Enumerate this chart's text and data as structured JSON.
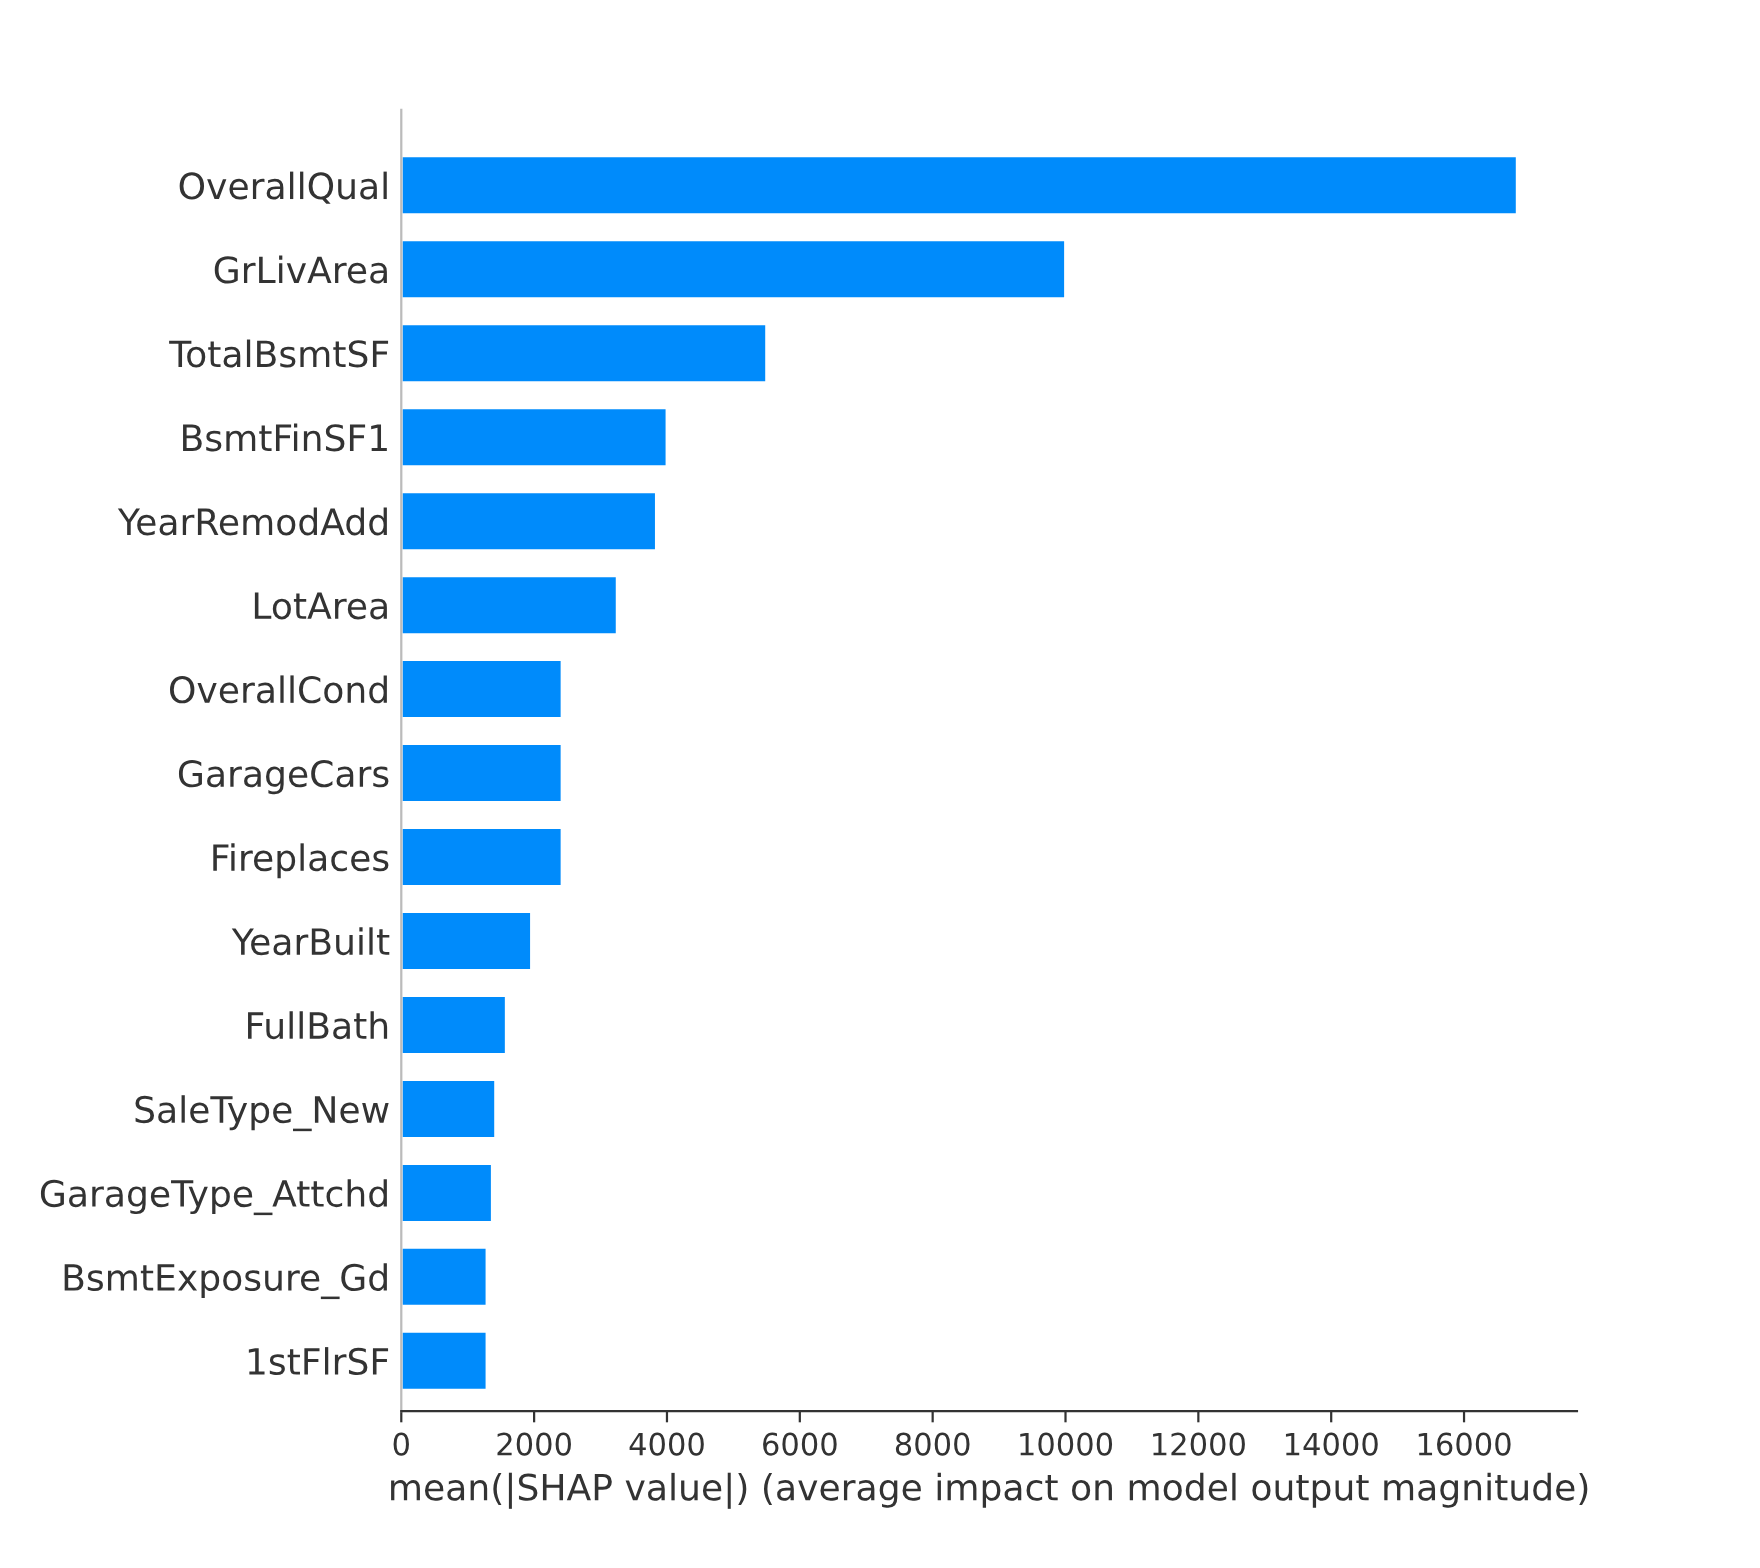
{
  "chart_data": {
    "type": "bar",
    "orientation": "horizontal",
    "xlabel": "mean(|SHAP value|) (average impact on model output magnitude)",
    "categories": [
      "OverallQual",
      "GrLivArea",
      "TotalBsmtSF",
      "BsmtFinSF1",
      "YearRemodAdd",
      "LotArea",
      "OverallCond",
      "GarageCars",
      "Fireplaces",
      "YearBuilt",
      "FullBath",
      "SaleType_New",
      "GarageType_Attchd",
      "BsmtExposure_Gd",
      "1stFlrSF"
    ],
    "values": [
      16800,
      10000,
      5500,
      4000,
      3840,
      3250,
      2420,
      2420,
      2420,
      1960,
      1580,
      1420,
      1370,
      1290,
      1290
    ],
    "color": "#008bfb",
    "xlim": [
      0,
      17700
    ],
    "xticks": [
      0,
      2000,
      4000,
      6000,
      8000,
      10000,
      12000,
      14000,
      16000
    ],
    "grid": false,
    "legend": false
  }
}
